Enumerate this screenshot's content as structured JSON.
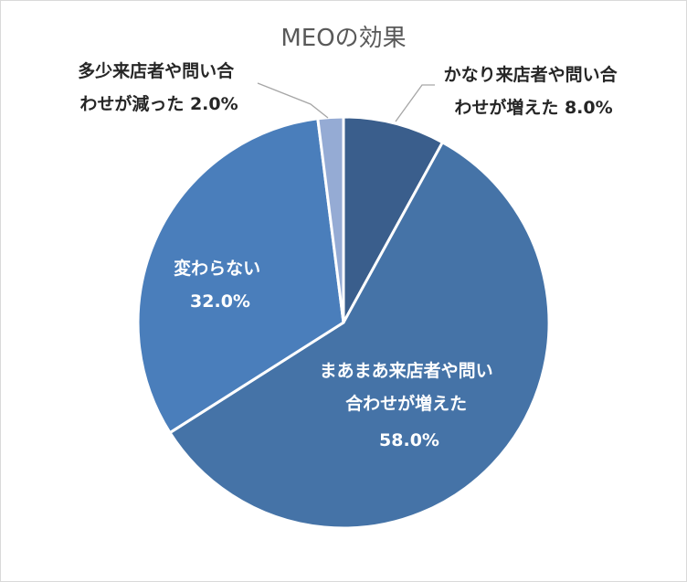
{
  "chart_data": {
    "type": "pie",
    "title": "MEOの効果",
    "slices": [
      {
        "label_lines": [
          "かなり来店者や問い合",
          "わせが増えた 8.0%"
        ],
        "value": 8.0,
        "color": "#3a5e8c"
      },
      {
        "label_lines": [
          "まあまあ来店者や問い",
          "合わせが増えた",
          "58.0%"
        ],
        "value": 58.0,
        "color": "#4573a7"
      },
      {
        "label_lines": [
          "変わらない",
          "32.0%"
        ],
        "value": 32.0,
        "color": "#4a7ebb"
      },
      {
        "label_lines": [
          "多少来店者や問い合",
          "わせが減った 2.0%"
        ],
        "value": 2.0,
        "color": "#95abd4"
      }
    ],
    "start_angle_deg": 0,
    "direction": "clockwise",
    "legend": "none"
  }
}
